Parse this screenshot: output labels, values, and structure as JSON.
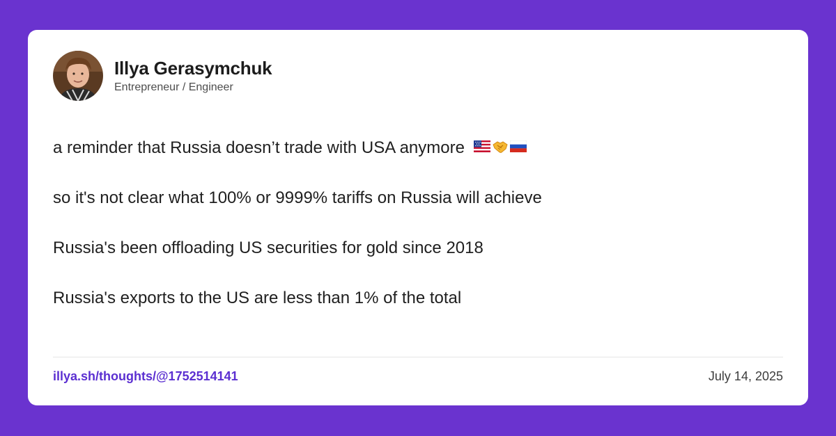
{
  "author": {
    "name": "Illya Gerasymchuk",
    "title": "Entrepreneur / Engineer"
  },
  "post": {
    "paragraphs": [
      "a reminder that Russia doesn’t trade with USA anymore",
      "so it's not clear what 100% or 9999% tariffs on Russia will achieve",
      "Russia's been offloading US securities for gold since 2018",
      "Russia's exports to the US are less than 1% of the total"
    ],
    "first_line_emoji": [
      "us-flag-icon",
      "handshake-icon",
      "russia-flag-icon"
    ]
  },
  "footer": {
    "link": "illya.sh/thoughts/@1752514141",
    "date": "July 14, 2025"
  },
  "colors": {
    "background": "#6a33cf",
    "card": "#ffffff",
    "link": "#5b2fd1",
    "text": "#1f1f1f"
  }
}
